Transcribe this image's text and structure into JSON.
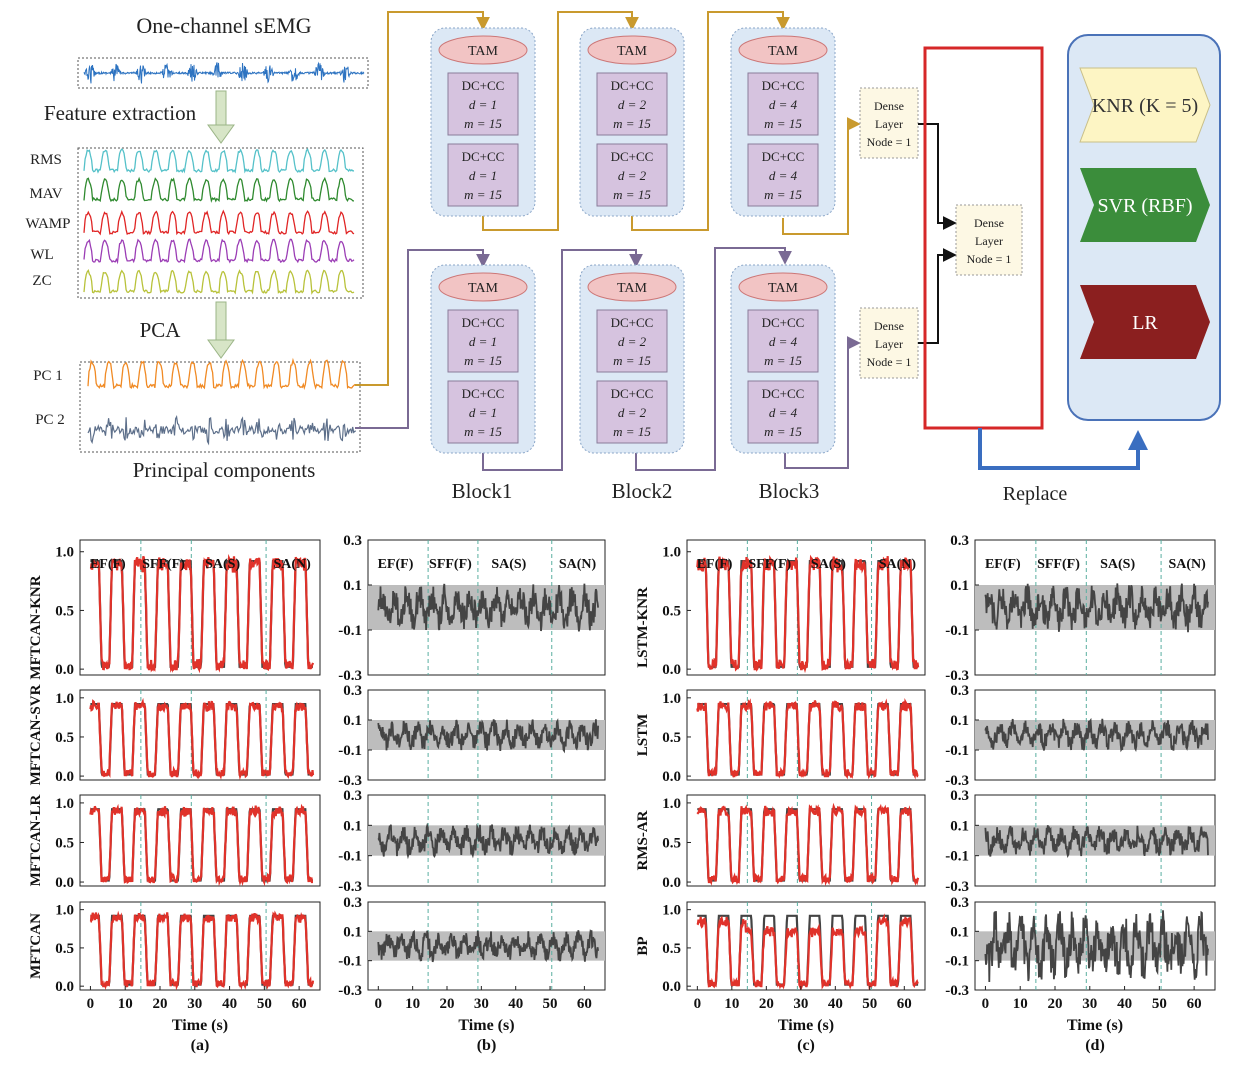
{
  "pipeline": {
    "input_title": "One-channel sEMG",
    "feature_step": "Feature extraction",
    "features": [
      "RMS",
      "MAV",
      "WAMP",
      "WL",
      "ZC"
    ],
    "pca_step": "PCA",
    "components": [
      "PC 1",
      "PC 2"
    ],
    "components_caption": "Principal components"
  },
  "network": {
    "tam_label": "TAM",
    "dccc_label": "DC+CC",
    "blocks": [
      {
        "name": "Block1",
        "d": "1",
        "m": "15"
      },
      {
        "name": "Block2",
        "d": "2",
        "m": "15"
      },
      {
        "name": "Block3",
        "d": "4",
        "m": "15"
      }
    ],
    "dense_label": [
      "Dense",
      "Layer",
      "Node = 1"
    ],
    "replace_label": "Replace",
    "regressors": [
      {
        "label": "KNR (K = 5)",
        "color": "#fdf5c4",
        "text_color": "#333333"
      },
      {
        "label": "SVR (RBF)",
        "color": "#3b8d3b",
        "text_color": "#ffffff"
      },
      {
        "label": "LR",
        "color": "#8b1f1f",
        "text_color": "#ffffff"
      }
    ],
    "colors": {
      "gold_arrow": "#c99a2e",
      "purple_arrow": "#7a6a94",
      "block_bg": "#dce8f5",
      "tam_fill": "#f2c4c4",
      "dccc_fill": "#d6c3df",
      "red_box": "#d62728",
      "replace_arrow": "#3a6ec0"
    }
  },
  "chart_data": [
    {
      "type": "line",
      "panel": "(a)",
      "rows": [
        "MFTCAN-KNR",
        "MFTCAN-SVR",
        "MFTCAN-LR",
        "MFTCAN"
      ],
      "phases": [
        "EF(F)",
        "SFF(F)",
        "SA(S)",
        "SA(N)"
      ],
      "xlabel": "Time (s)",
      "x_ticks": [
        "0",
        "10",
        "20",
        "30",
        "40",
        "50",
        "60"
      ],
      "y_ticks": [
        "0.0",
        "0.5",
        "1.0"
      ],
      "xlim": [
        -3,
        66
      ],
      "ylim": [
        -0.05,
        1.1
      ],
      "phase_boundaries": [
        14.5,
        29,
        50.5
      ],
      "series": [
        {
          "color": "#444444"
        },
        {
          "color": "#e0322a"
        }
      ]
    },
    {
      "type": "line",
      "panel": "(b)",
      "phases": [
        "EF(F)",
        "SFF(F)",
        "SA(S)",
        "SA(N)"
      ],
      "xlabel": "Time (s)",
      "x_ticks": [
        "0",
        "10",
        "20",
        "30",
        "40",
        "50",
        "60"
      ],
      "y_ticks": [
        "0.3",
        "0.1",
        "-0.1",
        "-0.3"
      ],
      "xlim": [
        -3,
        66
      ],
      "ylim": [
        -0.3,
        0.3
      ],
      "band": [
        -0.1,
        0.1
      ],
      "phase_boundaries": [
        14.5,
        29,
        50.5
      ],
      "series": [
        {
          "color": "#444444"
        }
      ]
    },
    {
      "type": "line",
      "panel": "(c)",
      "rows": [
        "LSTM-KNR",
        "LSTM",
        "RMS-AR",
        "BP"
      ],
      "phases": [
        "EF(F)",
        "SFF(F)",
        "SA(S)",
        "SA(N)"
      ],
      "xlabel": "Time (s)",
      "x_ticks": [
        "0",
        "10",
        "20",
        "30",
        "40",
        "50",
        "60"
      ],
      "y_ticks": [
        "0.0",
        "0.5",
        "1.0"
      ],
      "xlim": [
        -3,
        66
      ],
      "ylim": [
        -0.05,
        1.1
      ],
      "phase_boundaries": [
        14.5,
        29,
        50.5
      ],
      "series": [
        {
          "color": "#444444"
        },
        {
          "color": "#e0322a"
        }
      ]
    },
    {
      "type": "line",
      "panel": "(d)",
      "phases": [
        "EF(F)",
        "SFF(F)",
        "SA(S)",
        "SA(N)"
      ],
      "xlabel": "Time (s)",
      "x_ticks": [
        "0",
        "10",
        "20",
        "30",
        "40",
        "50",
        "60"
      ],
      "y_ticks": [
        "0.3",
        "0.1",
        "-0.1",
        "-0.3"
      ],
      "xlim": [
        -3,
        66
      ],
      "ylim": [
        -0.3,
        0.3
      ],
      "band": [
        -0.1,
        0.1
      ],
      "phase_boundaries": [
        14.5,
        29,
        50.5
      ],
      "series": [
        {
          "color": "#444444"
        }
      ]
    }
  ]
}
